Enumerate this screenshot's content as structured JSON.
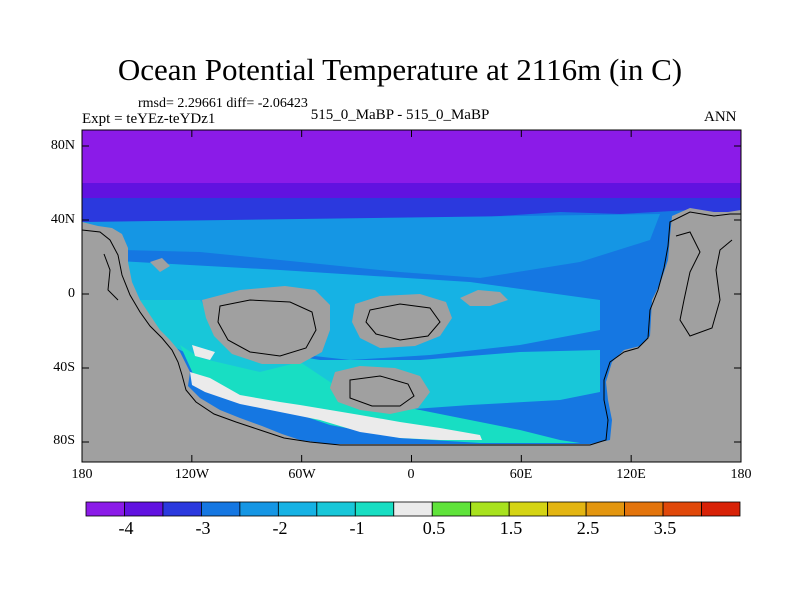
{
  "title": "Ocean Potential Temperature at 2116m (in C)",
  "stats": "rmsd= 2.29661 diff= -2.06423",
  "experiment": "Expt = teYEz-teYDz1",
  "case_label": "515_0_MaBP - 515_0_MaBP",
  "season": "ANN",
  "colors": {
    "land": "#a0a0a0",
    "colorbar": [
      "#8b1be8",
      "#6112e0",
      "#2b39de",
      "#1577e2",
      "#1596e4",
      "#16b2e4",
      "#18c7d9",
      "#18dec3",
      "#ebebeb",
      "#5fe33a",
      "#a8e21e",
      "#d5d414",
      "#e3b512",
      "#e3960f",
      "#e3740c",
      "#e0480a",
      "#d82207"
    ]
  },
  "map": {
    "y_ticks": [
      "80N",
      "40N",
      "0",
      "40S",
      "80S"
    ],
    "x_ticks": [
      "180",
      "120W",
      "60W",
      "0",
      "60E",
      "120E",
      "180"
    ]
  },
  "colorbar": {
    "tick_labels": [
      "-4",
      "-3",
      "-2",
      "-1",
      "0.5",
      "1.5",
      "2.5",
      "3.5"
    ]
  }
}
